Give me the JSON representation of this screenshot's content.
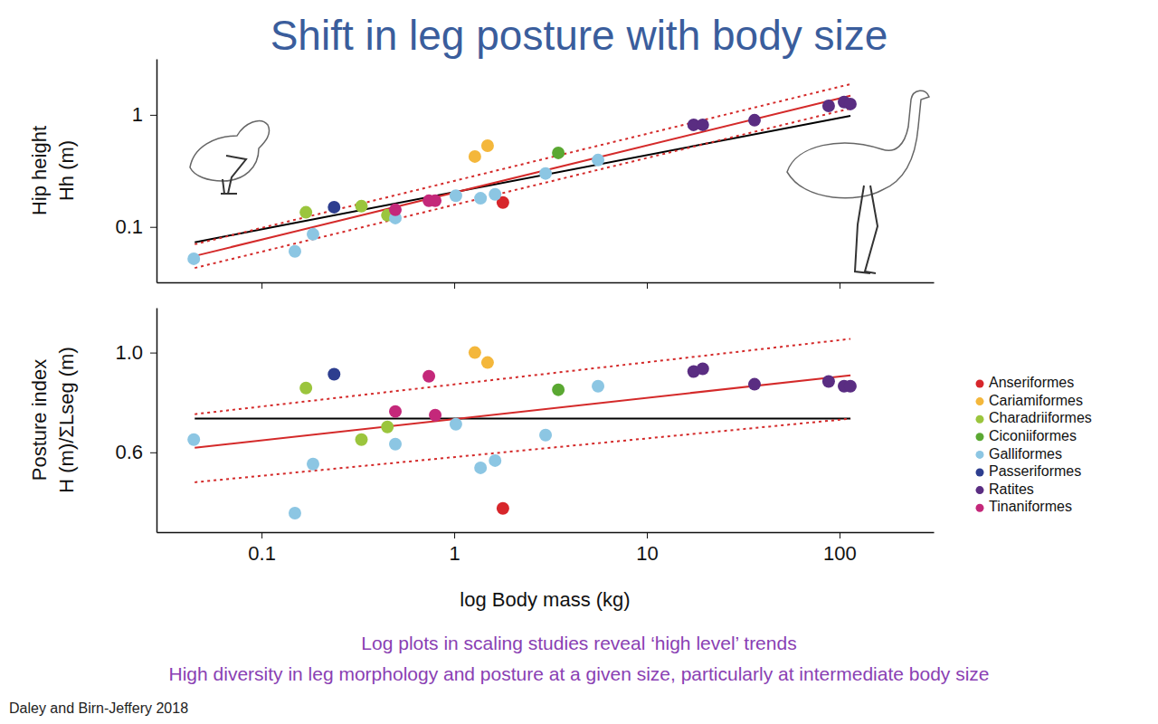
{
  "title": "Shift in leg posture with body size",
  "notes": [
    "Log plots in scaling studies reveal ‘high level’ trends",
    "High diversity in leg morphology and posture at a given size, particularly at intermediate body size"
  ],
  "source": "Daley and Birn-Jeffery 2018",
  "chart_data": [
    {
      "type": "scatter",
      "y_label": [
        "Hip height",
        "Hh (m)"
      ],
      "log": true,
      "xlim": [
        0.0285,
        308
      ],
      "ylim": [
        0.032,
        3.16
      ],
      "xticks": [
        0.1,
        1,
        10,
        100
      ],
      "yticks": [
        0.1,
        1
      ],
      "tick_labels": "y",
      "marker": "circle",
      "series": [
        {
          "type": "line",
          "color": "#000000",
          "line_style": "solid",
          "x": [
            0.045,
            114
          ],
          "values": [
            0.073,
            0.98
          ]
        },
        {
          "type": "line",
          "color": "#d42a2a",
          "line_style": "solid",
          "x": [
            0.045,
            114
          ],
          "values": [
            0.055,
            1.48
          ]
        },
        {
          "type": "line",
          "color": "#d42a2a",
          "line_style": "dotted",
          "x": [
            0.045,
            114
          ],
          "values": [
            0.07,
            1.88
          ]
        },
        {
          "type": "line",
          "color": "#d42a2a",
          "line_style": "dotted",
          "x": [
            0.045,
            114
          ],
          "values": [
            0.043,
            1.14
          ]
        },
        {
          "color": "#d7262b",
          "x": [
            1.79
          ],
          "values": [
            0.165
          ]
        },
        {
          "color": "#f4b73b",
          "x": [
            1.28,
            1.49
          ],
          "values": [
            0.425,
            0.53
          ]
        },
        {
          "color": "#9bc53d",
          "x": [
            0.17,
            0.33,
            0.45
          ],
          "values": [
            0.135,
            0.153,
            0.127
          ]
        },
        {
          "color": "#5aa832",
          "x": [
            3.47
          ],
          "values": [
            0.458
          ]
        },
        {
          "color": "#8cc6e3",
          "x": [
            0.0445,
            0.149,
            0.185,
            0.495,
            1.02,
            1.37,
            1.63,
            2.98,
            5.58
          ],
          "values": [
            0.052,
            0.0605,
            0.086,
            0.12,
            0.19,
            0.18,
            0.195,
            0.3,
            0.395
          ]
        },
        {
          "color": "#2d3e8f",
          "x": [
            0.238
          ],
          "values": [
            0.15
          ]
        },
        {
          "color": "#5a2d82",
          "x": [
            17.5,
            19.5,
            36.2,
            87.8,
            105.6,
            113.8
          ],
          "values": [
            0.815,
            0.815,
            0.895,
            1.2,
            1.3,
            1.25
          ]
        },
        {
          "color": "#c4287a",
          "x": [
            0.495,
            0.739,
            0.797
          ],
          "values": [
            0.142,
            0.171,
            0.171
          ]
        }
      ]
    },
    {
      "type": "scatter",
      "x_label": "log Body mass (kg)",
      "y_label": [
        "Posture index",
        "H (m)/ΣLseg (m)"
      ],
      "log": "x",
      "xlim": [
        0.0285,
        308
      ],
      "ylim": [
        0.28,
        1.18
      ],
      "xticks": [
        0.1,
        1,
        10,
        100
      ],
      "yticks": [
        0.6,
        {
          "value": 1,
          "label": "1.0"
        }
      ],
      "legend": "right",
      "marker": "circle",
      "series": [
        {
          "type": "line",
          "color": "#000000",
          "line_style": "solid",
          "x": [
            0.045,
            114
          ],
          "values": [
            0.735,
            0.735
          ]
        },
        {
          "type": "line",
          "color": "#d42a2a",
          "line_style": "solid",
          "x": [
            0.045,
            114
          ],
          "values": [
            0.618,
            0.909
          ]
        },
        {
          "type": "line",
          "color": "#d42a2a",
          "line_style": "dotted",
          "x": [
            0.045,
            114
          ],
          "values": [
            0.753,
            1.055
          ]
        },
        {
          "type": "line",
          "color": "#d42a2a",
          "line_style": "dotted",
          "x": [
            0.045,
            114
          ],
          "values": [
            0.48,
            0.735
          ]
        },
        {
          "name": "Anseriformes",
          "color": "#d7262b",
          "x": [
            1.79
          ],
          "values": [
            0.375
          ]
        },
        {
          "name": "Cariamiformes",
          "color": "#f4b73b",
          "x": [
            1.28,
            1.49
          ],
          "values": [
            1.0,
            0.96
          ]
        },
        {
          "name": "Charadriiformes",
          "color": "#9bc53d",
          "x": [
            0.17,
            0.33,
            0.45
          ],
          "values": [
            0.858,
            0.651,
            0.702
          ]
        },
        {
          "name": "Ciconiiformes",
          "color": "#5aa832",
          "x": [
            3.47
          ],
          "values": [
            0.851
          ]
        },
        {
          "name": "Galliformes",
          "color": "#8cc6e3",
          "x": [
            0.0445,
            0.149,
            0.185,
            0.495,
            1.02,
            1.37,
            1.63,
            2.98,
            5.58
          ],
          "values": [
            0.651,
            0.356,
            0.553,
            0.633,
            0.713,
            0.538,
            0.567,
            0.669,
            0.865
          ]
        },
        {
          "name": "Passeriformes",
          "color": "#2d3e8f",
          "x": [
            0.238
          ],
          "values": [
            0.913
          ]
        },
        {
          "name": "Ratites",
          "color": "#5a2d82",
          "x": [
            17.5,
            19.5,
            36.2,
            87.8,
            105.6,
            113.8
          ],
          "values": [
            0.924,
            0.935,
            0.873,
            0.884,
            0.865,
            0.865
          ]
        },
        {
          "name": "Tinaniformes",
          "color": "#c4287a",
          "x": [
            0.495,
            0.739,
            0.797
          ],
          "values": [
            0.764,
            0.905,
            0.749
          ]
        }
      ]
    }
  ]
}
